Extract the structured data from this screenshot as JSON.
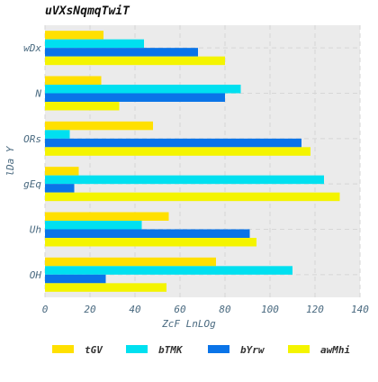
{
  "chart_data": {
    "type": "bar",
    "orientation": "horizontal",
    "title": "uVXsNqmqTwiT",
    "xlabel": "ZcF LnLOg",
    "ylabel": "lDa Y",
    "categories": [
      "wDx",
      "N",
      "ORs",
      "gEq",
      "Uh",
      "OH"
    ],
    "series": [
      {
        "name": "tGV",
        "color": "#FFE000",
        "values": [
          26,
          25,
          48,
          15,
          55,
          76
        ]
      },
      {
        "name": "bTMK",
        "color": "#00E0F0",
        "values": [
          44,
          87,
          11,
          124,
          43,
          110
        ]
      },
      {
        "name": "bYrw",
        "color": "#0A74E8",
        "values": [
          68,
          80,
          114,
          13,
          91,
          27
        ]
      },
      {
        "name": "awMhi",
        "color": "#F4F400",
        "values": [
          80,
          33,
          118,
          131,
          94,
          54
        ]
      }
    ],
    "xlim": [
      0,
      140
    ],
    "xticks": [
      "0",
      "20",
      "40",
      "60",
      "80",
      "100",
      "120",
      "140"
    ],
    "grid": true,
    "legend_position": "bottom"
  }
}
